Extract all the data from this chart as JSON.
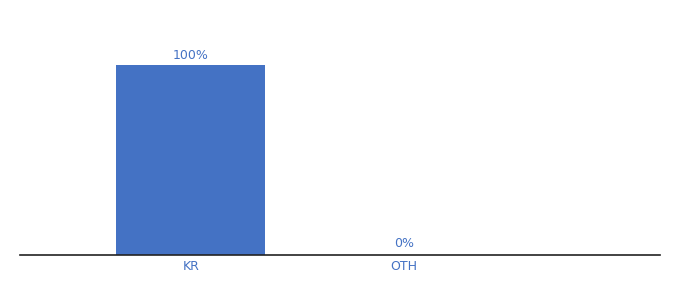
{
  "categories": [
    "KR",
    "OTH"
  ],
  "values": [
    100,
    0
  ],
  "bar_color": "#4472c4",
  "label_color": "#4472c4",
  "tick_color": "#4472c4",
  "background_color": "#ffffff",
  "bar_labels": [
    "100%",
    "0%"
  ],
  "ylim": [
    0,
    115
  ],
  "label_fontsize": 9,
  "tick_fontsize": 9,
  "bar_width": 0.7
}
